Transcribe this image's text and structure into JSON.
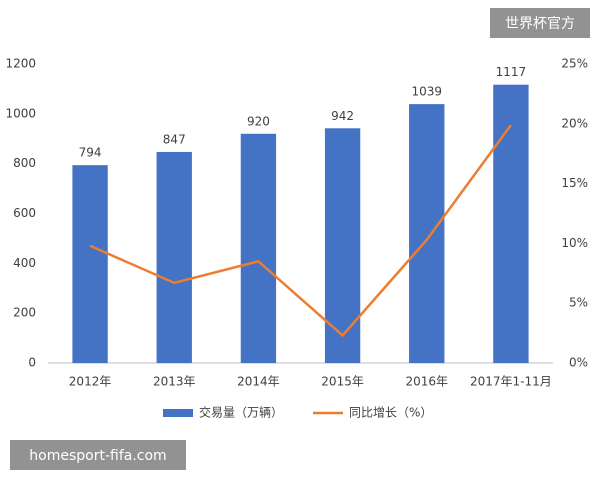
{
  "chart_data": {
    "type": "combo",
    "categories": [
      "2012年",
      "2013年",
      "2014年",
      "2015年",
      "2016年",
      "2017年1-11月"
    ],
    "series": [
      {
        "name": "交易量（万辆）",
        "type": "bar",
        "color": "#4472c4",
        "values": [
          794,
          847,
          920,
          942,
          1039,
          1117
        ]
      },
      {
        "name": "同比增长（%）",
        "type": "line",
        "axis": "y2",
        "color": "#ed7d31",
        "values": [
          9.8,
          6.7,
          8.5,
          2.3,
          10.3,
          19.9
        ]
      }
    ],
    "ylim": [
      0,
      1200
    ],
    "yticks": [
      0,
      200,
      400,
      600,
      800,
      1000,
      1200
    ],
    "y2lim": [
      0,
      25
    ],
    "y2ticks": [
      {
        "value": 0,
        "label": "0%"
      },
      {
        "value": 5,
        "label": "5%"
      },
      {
        "value": 10,
        "label": "10%"
      },
      {
        "value": 15,
        "label": "15%"
      },
      {
        "value": 20,
        "label": "20%"
      },
      {
        "value": 25,
        "label": "25%"
      }
    ],
    "grid": false,
    "legend": "bottom"
  },
  "watermarks": {
    "top_right": "世界杯官方",
    "bottom_left": "homesport-fifa.com"
  }
}
